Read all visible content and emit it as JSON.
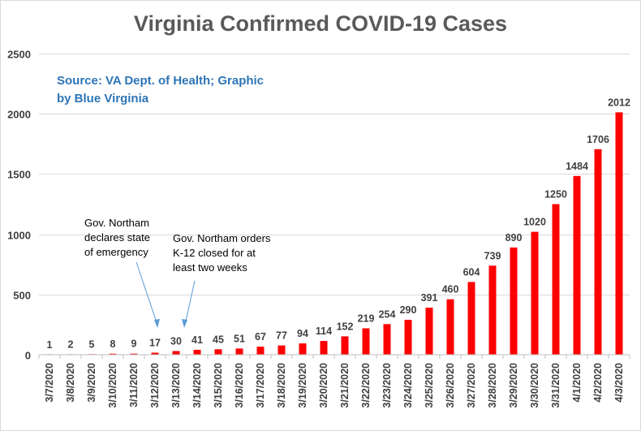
{
  "chart_data": {
    "type": "bar",
    "title": "Virginia Confirmed COVID-19 Cases",
    "categories": [
      "3/7/2020",
      "3/8/2020",
      "3/9/2020",
      "3/10/2020",
      "3/11/2020",
      "3/12/2020",
      "3/13/2020",
      "3/14/2020",
      "3/15/2020",
      "3/16/2020",
      "3/17/2020",
      "3/18/2020",
      "3/19/2020",
      "3/20/2020",
      "3/21/2020",
      "3/22/2020",
      "3/23/2020",
      "3/24/2020",
      "3/25/2020",
      "3/26/2020",
      "3/27/2020",
      "3/28/2020",
      "3/29/2020",
      "3/30/2020",
      "3/31/2020",
      "4/1/2020",
      "4/2/2020",
      "4/3/2020"
    ],
    "values": [
      1,
      2,
      5,
      8,
      9,
      17,
      30,
      41,
      45,
      51,
      67,
      77,
      94,
      114,
      152,
      219,
      254,
      290,
      391,
      460,
      604,
      739,
      890,
      1020,
      1250,
      1484,
      1706,
      2012
    ],
    "ylim": [
      0,
      2500
    ],
    "yticks": [
      0,
      500,
      1000,
      1500,
      2000,
      2500
    ],
    "xlabel": "",
    "ylabel": "",
    "grid": true,
    "bar_color": "#ff0000",
    "data_labels": true,
    "annotations": {
      "source_line1": "Source: VA Dept. of Health; Graphic",
      "source_line2": "by Blue Virginia",
      "emergency_line1": "Gov. Northam",
      "emergency_line2": "declares state",
      "emergency_line3": "of emergency",
      "emergency_target": "3/12/2020",
      "schools_line1": "Gov. Northam orders",
      "schools_line2": "K-12 closed  for at",
      "schools_line3": "least two weeks",
      "schools_target": "3/13/2020"
    }
  }
}
